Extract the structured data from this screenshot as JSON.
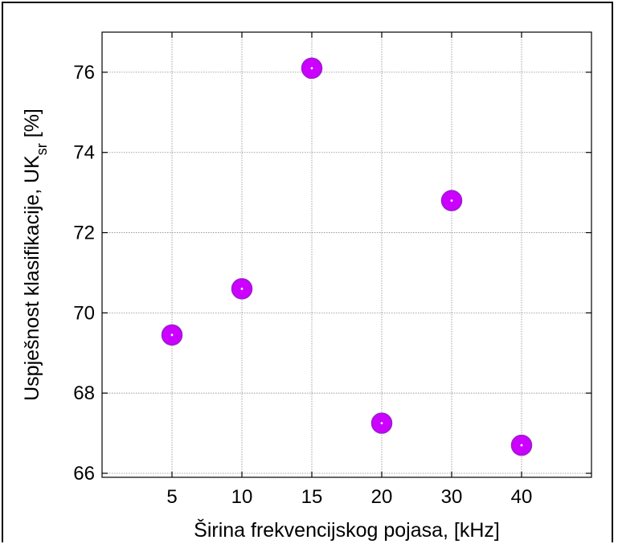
{
  "chart_data": {
    "type": "scatter",
    "xlabel": "Širina frekvencijskog pojasa, [kHz]",
    "ylabel_main": "Uspješnost klasifikacije, UK",
    "ylabel_sub": "sr",
    "ylabel_unit": " [%]",
    "categories": [
      "5",
      "10",
      "15",
      "20",
      "30",
      "40"
    ],
    "series": [
      {
        "values": [
          69.45,
          70.6,
          76.1,
          67.25,
          72.8,
          66.7
        ]
      }
    ],
    "x_positions": [
      1,
      2,
      3,
      4,
      5,
      6
    ],
    "xlim": [
      0,
      7
    ],
    "ylim": [
      65.9,
      77.0
    ],
    "yticks": [
      66,
      68,
      70,
      72,
      74,
      76
    ],
    "grid": true,
    "marker_color": "#cc00ff",
    "marker_outline": "#9a1fc9"
  }
}
